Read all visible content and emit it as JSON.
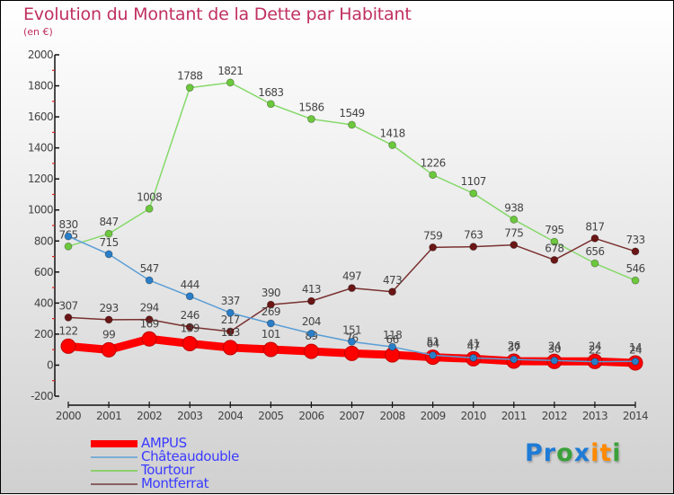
{
  "header": {
    "title": "Evolution du Montant de la Dette par Habitant",
    "subtitle": "(en €)"
  },
  "logo": {
    "text": "Proxiti",
    "letters": [
      {
        "ch": "P",
        "color": "#1e7bd6"
      },
      {
        "ch": "r",
        "color": "#1e7bd6"
      },
      {
        "ch": "o",
        "color": "#3aa13a"
      },
      {
        "ch": "x",
        "color": "#1e7bd6"
      },
      {
        "ch": "i",
        "color": "#ff8a00"
      },
      {
        "ch": "t",
        "color": "#ff8a00"
      },
      {
        "ch": "i",
        "color": "#3aa13a"
      }
    ]
  },
  "chart_data": {
    "type": "line",
    "title": "Evolution du Montant de la Dette par Habitant",
    "subtitle": "(en €)",
    "xlabel": "",
    "ylabel": "",
    "ylim": [
      -200,
      2000
    ],
    "yticks": [
      -200,
      0,
      200,
      400,
      600,
      800,
      1000,
      1200,
      1400,
      1600,
      1800,
      2000
    ],
    "grid": false,
    "legend_position": "bottom-left",
    "x": [
      "2000",
      "2001",
      "2002",
      "2003",
      "2004",
      "2005",
      "2006",
      "2007",
      "2008",
      "2009",
      "2010",
      "2011",
      "2012",
      "2013",
      "2014"
    ],
    "series": [
      {
        "name": "Tourtour",
        "color": "#86d96a",
        "marker": "#6cc83c",
        "values": [
          765,
          847,
          1008,
          1788,
          1821,
          1683,
          1586,
          1549,
          1418,
          1226,
          1107,
          938,
          795,
          656,
          546
        ]
      },
      {
        "name": "Montferrat",
        "color": "#7a3030",
        "marker": "#6b1616",
        "values": [
          307,
          293,
          294,
          246,
          217,
          390,
          413,
          497,
          473,
          759,
          763,
          775,
          678,
          817,
          733
        ]
      },
      {
        "name": "AMPUS",
        "color": "#ff0000",
        "marker": "#ff0000",
        "values": [
          122,
          99,
          169,
          139,
          113,
          101,
          89,
          76,
          66,
          51,
          41,
          26,
          24,
          24,
          14
        ]
      },
      {
        "name": "Châteaudouble",
        "color": "#5a9ed6",
        "marker": "#2a7ec8",
        "values": [
          830,
          715,
          547,
          444,
          337,
          269,
          204,
          151,
          118,
          64,
          47,
          37,
          30,
          22,
          24
        ]
      }
    ],
    "legend": [
      "AMPUS",
      "Châteaudouble",
      "Tourtour",
      "Montferrat"
    ]
  }
}
